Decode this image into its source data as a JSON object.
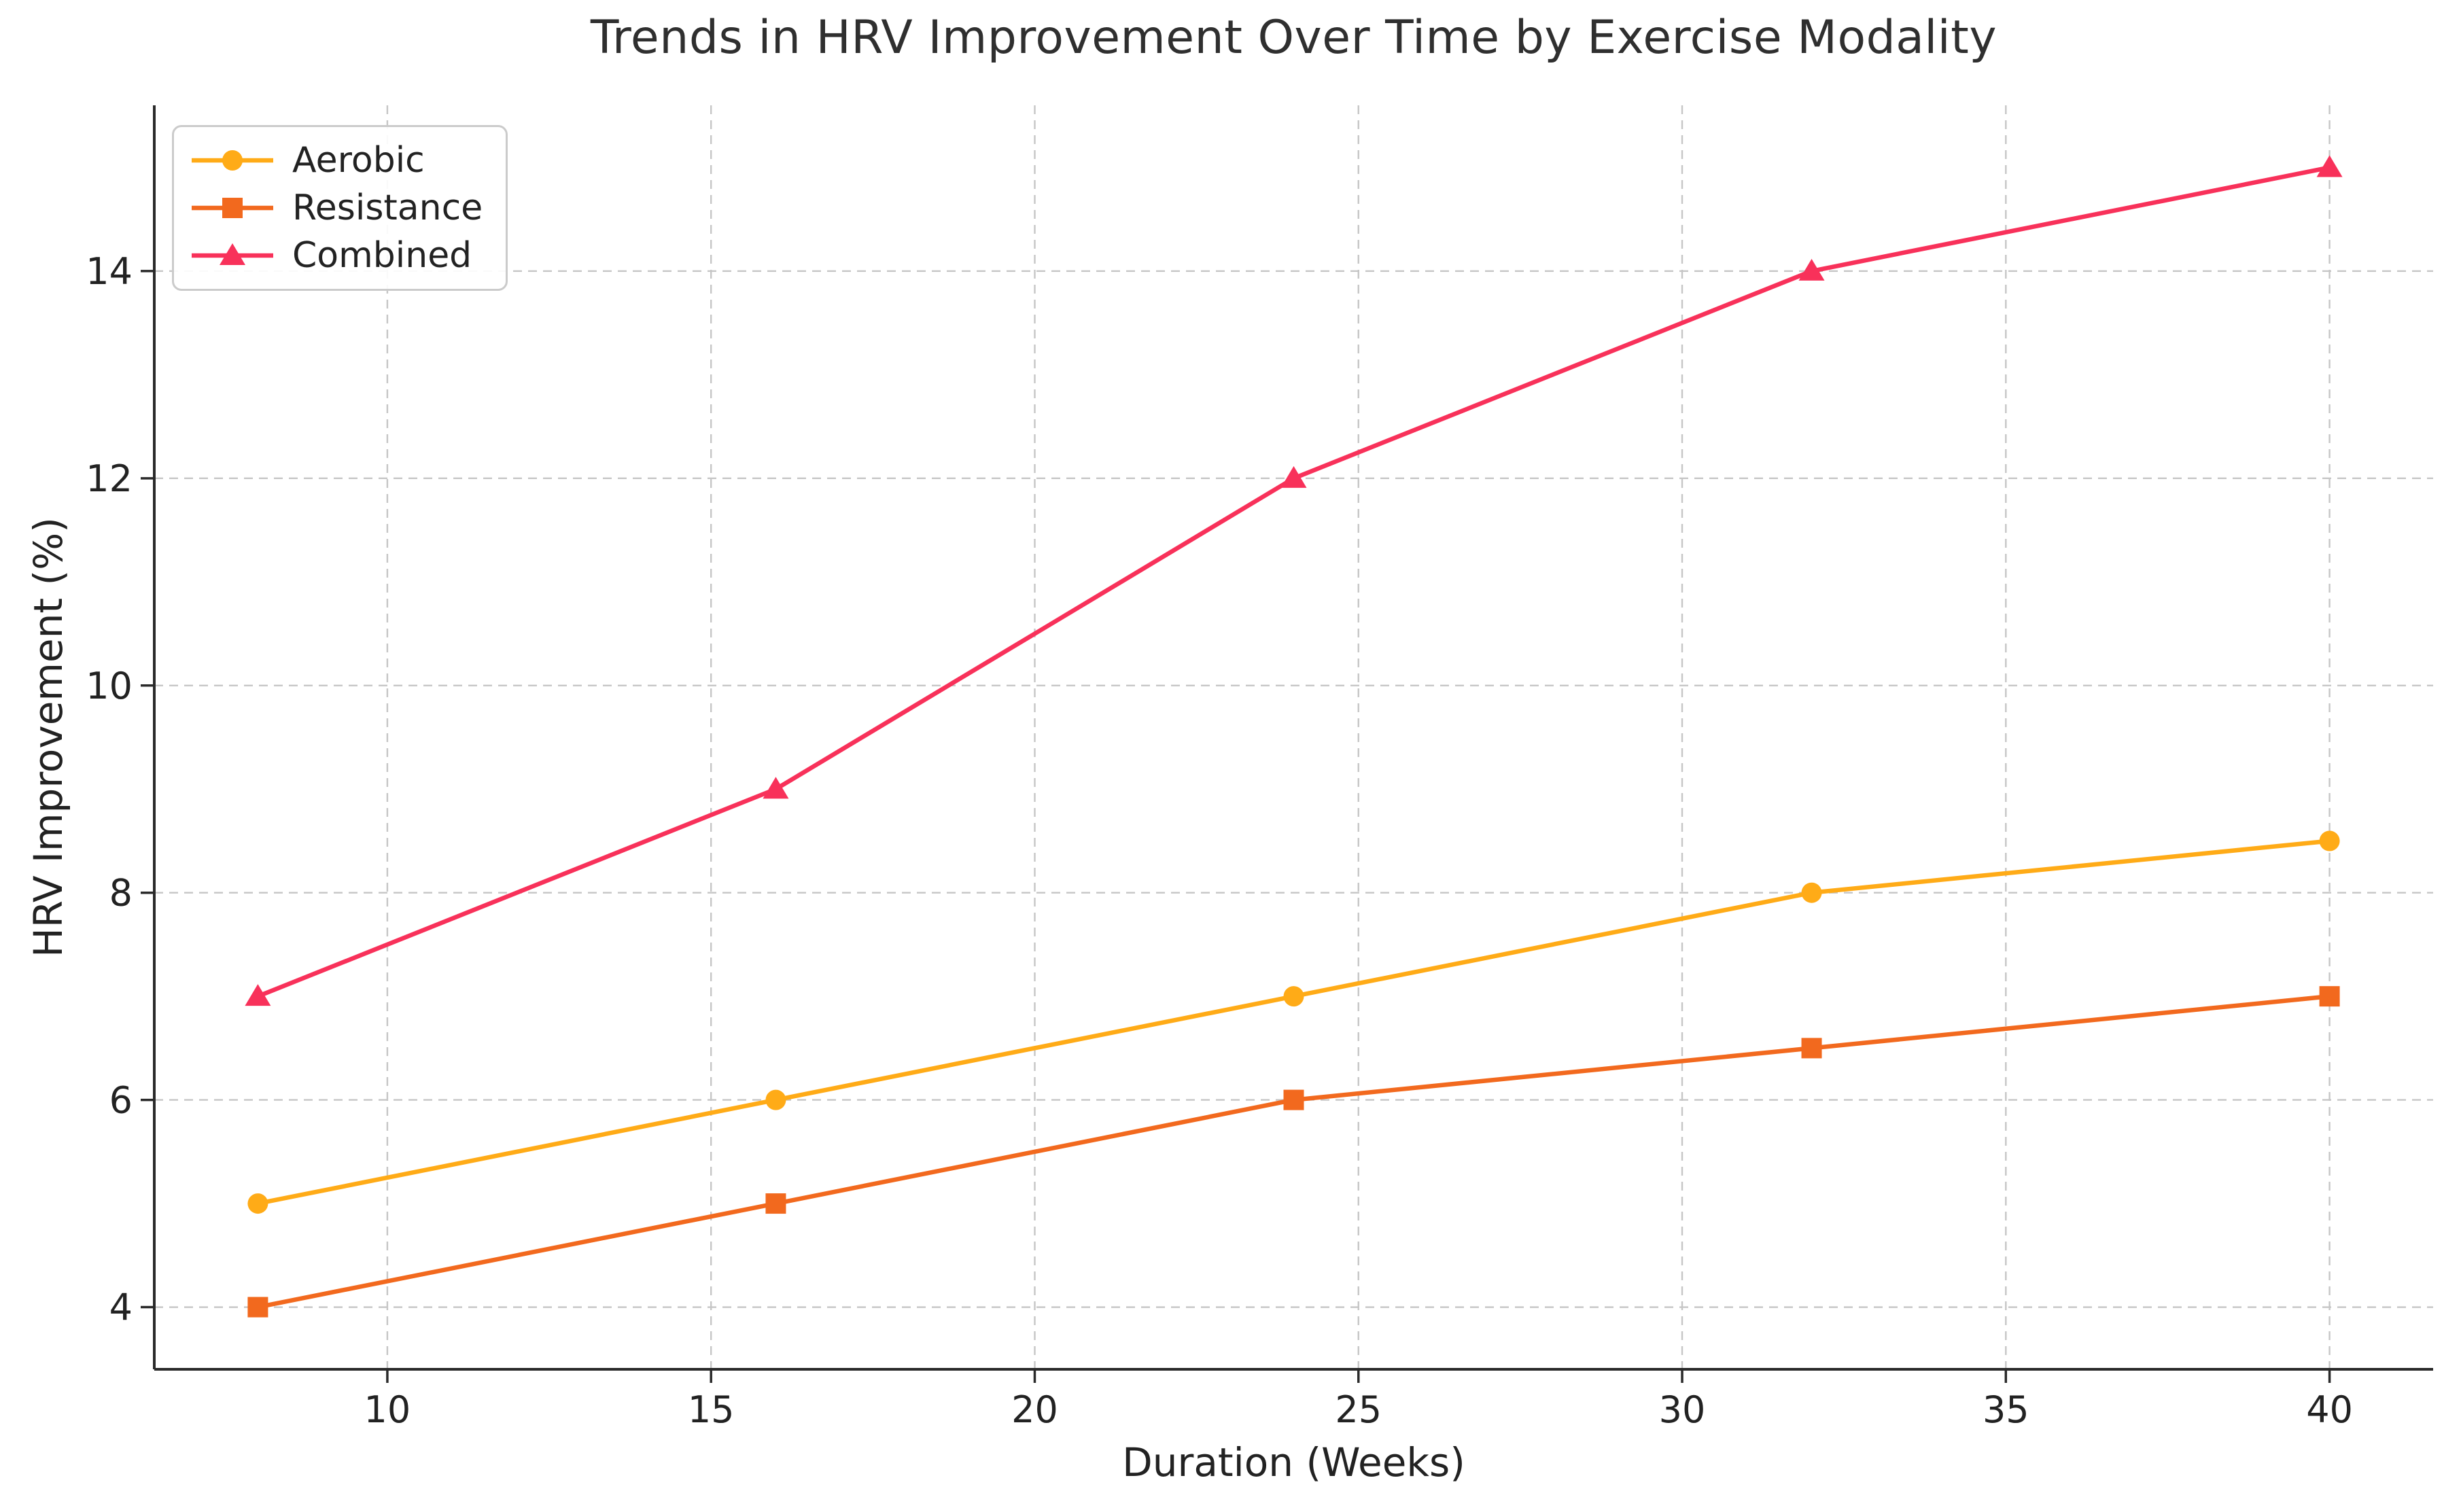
{
  "chart_data": {
    "type": "line",
    "title": "Trends in HRV Improvement Over Time by Exercise Modality",
    "xlabel": "Duration (Weeks)",
    "ylabel": "HRV Improvement (%)",
    "x": [
      8,
      16,
      24,
      32,
      40
    ],
    "series": [
      {
        "name": "Aerobic",
        "marker": "circle",
        "color": "#FFAB17",
        "values": [
          5,
          6,
          7,
          8,
          8.5
        ]
      },
      {
        "name": "Resistance",
        "marker": "square",
        "color": "#F2691E",
        "values": [
          4,
          5,
          6,
          6.5,
          7
        ]
      },
      {
        "name": "Combined",
        "marker": "triangle",
        "color": "#F8315A",
        "values": [
          7,
          9,
          12,
          14,
          15
        ]
      }
    ],
    "xlim": [
      6.4,
      41.6
    ],
    "ylim": [
      3.4,
      15.6
    ],
    "xticks": [
      10,
      15,
      20,
      25,
      30,
      35,
      40
    ],
    "yticks": [
      4,
      6,
      8,
      10,
      12,
      14
    ],
    "grid": {
      "visible": true,
      "style": "dashed",
      "color": "#c6c6c6"
    },
    "legend": {
      "position": "upper-left",
      "labels": [
        "Aerobic",
        "Resistance",
        "Combined"
      ]
    },
    "appearance": {
      "background": "#ffffff",
      "spine_color": "#2a2a2a",
      "tick_text_color": "#222222",
      "title_color": "#2f2f2f",
      "legend_border_color": "#cbcbcb"
    }
  }
}
